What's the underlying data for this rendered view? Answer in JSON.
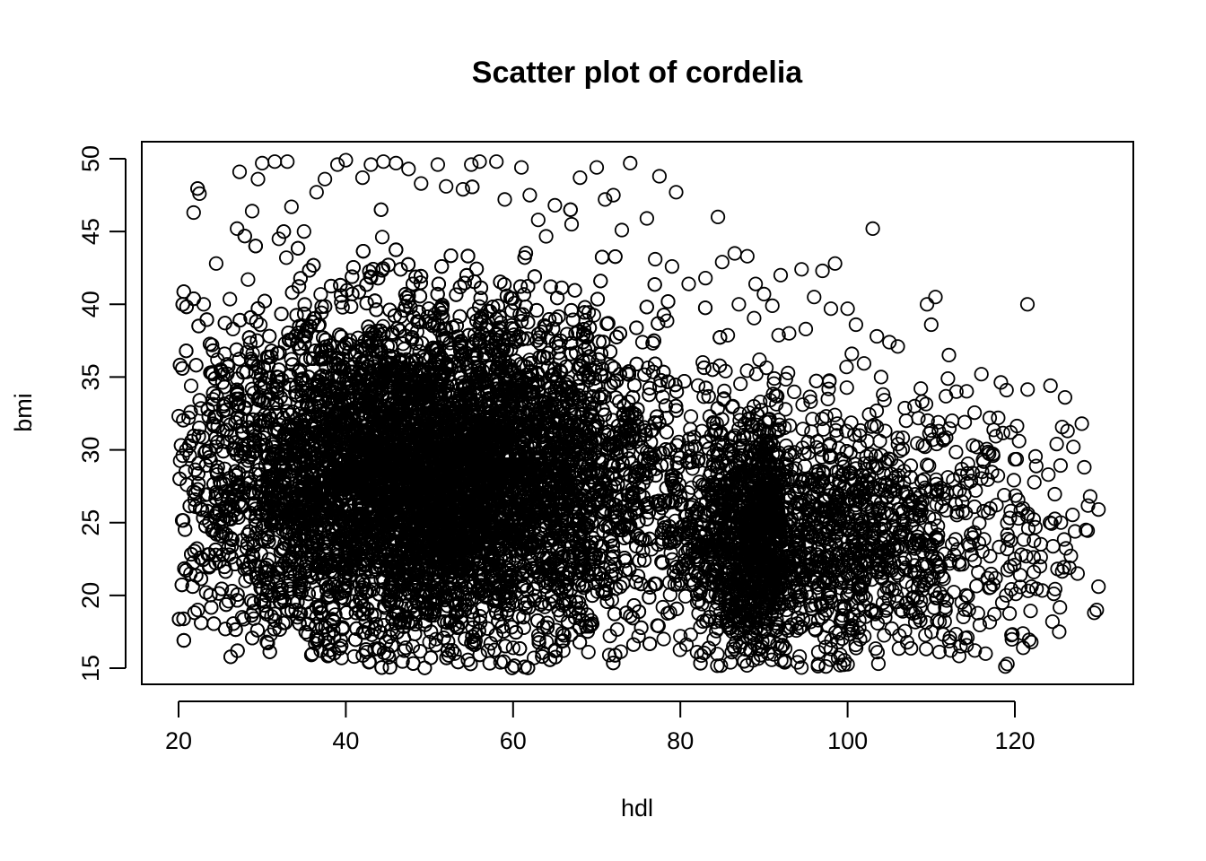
{
  "chart_data": {
    "type": "scatter",
    "title": "Scatter plot of cordelia",
    "xlabel": "hdl",
    "ylabel": "bmi",
    "xlim": [
      20,
      130
    ],
    "ylim": [
      15,
      50
    ],
    "x_ticks": [
      20,
      40,
      60,
      80,
      100,
      120
    ],
    "y_ticks": [
      15,
      20,
      25,
      30,
      35,
      40,
      45,
      50
    ],
    "x_tick_labels": [
      "20",
      "40",
      "60",
      "80",
      "100",
      "120"
    ],
    "y_tick_labels": [
      "15",
      "20",
      "25",
      "30",
      "35",
      "40",
      "45",
      "50"
    ],
    "marker": "open-circle",
    "grid": false,
    "legend": "none",
    "color": "#000000",
    "points": [
      [
        20.5,
        29.6
      ],
      [
        21.0,
        27.6
      ],
      [
        21.2,
        32.2
      ],
      [
        21.5,
        34.4
      ],
      [
        21.8,
        46.3
      ],
      [
        22.0,
        26.1
      ],
      [
        22.3,
        19.0
      ],
      [
        22.5,
        47.6
      ],
      [
        23.0,
        40.0
      ],
      [
        23.3,
        20.2
      ],
      [
        23.5,
        22.8
      ],
      [
        23.8,
        35.3
      ],
      [
        24.0,
        37.2
      ],
      [
        24.5,
        42.8
      ],
      [
        25.0,
        24.1
      ],
      [
        25.5,
        36.6
      ],
      [
        26.0,
        19.6
      ],
      [
        26.5,
        38.3
      ],
      [
        27.0,
        45.2
      ],
      [
        27.3,
        49.1
      ],
      [
        27.6,
        18.5
      ],
      [
        28.0,
        21.0
      ],
      [
        28.3,
        41.7
      ],
      [
        28.8,
        46.4
      ],
      [
        29.0,
        18.4
      ],
      [
        29.5,
        48.6
      ],
      [
        30.0,
        49.7
      ],
      [
        30.5,
        20.0
      ],
      [
        31.0,
        17.3
      ],
      [
        31.5,
        49.8
      ],
      [
        32.0,
        44.5
      ],
      [
        32.5,
        18.1
      ],
      [
        33.0,
        49.8
      ],
      [
        33.5,
        46.7
      ],
      [
        34.0,
        19.0
      ],
      [
        35.0,
        45.0
      ],
      [
        35.5,
        17.3
      ],
      [
        36.0,
        16.0
      ],
      [
        36.5,
        47.7
      ],
      [
        37.0,
        16.2
      ],
      [
        37.5,
        48.6
      ],
      [
        38.0,
        15.9
      ],
      [
        38.5,
        17.6
      ],
      [
        39.0,
        49.6
      ],
      [
        39.5,
        15.7
      ],
      [
        40.0,
        49.9
      ],
      [
        41.0,
        15.8
      ],
      [
        42.0,
        48.7
      ],
      [
        42.5,
        16.1
      ],
      [
        43.0,
        49.6
      ],
      [
        44.0,
        16.3
      ],
      [
        44.5,
        49.8
      ],
      [
        45.0,
        16.0
      ],
      [
        46.0,
        49.7
      ],
      [
        47.0,
        16.2
      ],
      [
        47.5,
        49.3
      ],
      [
        48.0,
        16.5
      ],
      [
        49.0,
        48.3
      ],
      [
        50.0,
        16.8
      ],
      [
        51.0,
        49.6
      ],
      [
        52.0,
        48.1
      ],
      [
        53.0,
        16.0
      ],
      [
        54.0,
        47.9
      ],
      [
        55.0,
        49.6
      ],
      [
        55.5,
        16.9
      ],
      [
        56.0,
        49.8
      ],
      [
        57.0,
        16.2
      ],
      [
        58.0,
        49.8
      ],
      [
        58.5,
        15.4
      ],
      [
        59.0,
        47.2
      ],
      [
        60.0,
        16.4
      ],
      [
        61.0,
        49.4
      ],
      [
        62.0,
        47.5
      ],
      [
        62.5,
        15.7
      ],
      [
        63.0,
        45.8
      ],
      [
        64.0,
        16.8
      ],
      [
        65.0,
        46.8
      ],
      [
        66.0,
        16.2
      ],
      [
        67.0,
        45.5
      ],
      [
        68.0,
        48.7
      ],
      [
        69.0,
        16.1
      ],
      [
        70.0,
        49.4
      ],
      [
        71.0,
        47.2
      ],
      [
        71.5,
        15.9
      ],
      [
        72.0,
        47.5
      ],
      [
        73.0,
        45.1
      ],
      [
        74.0,
        49.7
      ],
      [
        75.0,
        17.2
      ],
      [
        76.0,
        45.9
      ],
      [
        77.0,
        43.1
      ],
      [
        77.5,
        48.8
      ],
      [
        78.0,
        17.0
      ],
      [
        79.0,
        42.6
      ],
      [
        79.5,
        47.7
      ],
      [
        80.0,
        17.2
      ],
      [
        81.0,
        41.4
      ],
      [
        82.0,
        16.1
      ],
      [
        83.0,
        41.8
      ],
      [
        84.0,
        17.0
      ],
      [
        84.5,
        46.0
      ],
      [
        85.0,
        42.9
      ],
      [
        86.0,
        15.4
      ],
      [
        86.5,
        43.5
      ],
      [
        87.0,
        40.0
      ],
      [
        88.0,
        43.3
      ],
      [
        88.5,
        17.4
      ],
      [
        89.0,
        41.4
      ],
      [
        90.0,
        40.7
      ],
      [
        90.5,
        17.0
      ],
      [
        91.0,
        39.9
      ],
      [
        92.0,
        42.0
      ],
      [
        92.5,
        15.5
      ],
      [
        93.0,
        38.0
      ],
      [
        94.0,
        15.4
      ],
      [
        94.5,
        42.4
      ],
      [
        95.0,
        38.3
      ],
      [
        96.0,
        40.5
      ],
      [
        96.5,
        16.1
      ],
      [
        97.0,
        42.3
      ],
      [
        98.0,
        39.7
      ],
      [
        98.5,
        42.8
      ],
      [
        99.0,
        17.4
      ],
      [
        100.0,
        39.7
      ],
      [
        100.5,
        36.6
      ],
      [
        101.0,
        38.6
      ],
      [
        102.0,
        17.2
      ],
      [
        103.0,
        45.2
      ],
      [
        103.5,
        37.8
      ],
      [
        104.0,
        35.0
      ],
      [
        104.5,
        18.5
      ],
      [
        105.0,
        37.4
      ],
      [
        106.0,
        37.1
      ],
      [
        107.0,
        32.0
      ],
      [
        107.5,
        18.9
      ],
      [
        108.0,
        33.0
      ],
      [
        109.0,
        30.3
      ],
      [
        109.5,
        40.0
      ],
      [
        110.0,
        38.6
      ],
      [
        110.5,
        40.5
      ],
      [
        111.0,
        18.2
      ],
      [
        112.0,
        34.9
      ],
      [
        112.5,
        32.0
      ],
      [
        113.0,
        34.0
      ],
      [
        113.5,
        16.5
      ],
      [
        114.0,
        31.9
      ],
      [
        114.5,
        19.0
      ],
      [
        115.0,
        30.3
      ],
      [
        116.0,
        35.2
      ],
      [
        116.5,
        16.0
      ],
      [
        117.0,
        32.2
      ],
      [
        118.0,
        32.2
      ],
      [
        118.5,
        19.5
      ],
      [
        119.0,
        34.1
      ],
      [
        119.5,
        31.2
      ],
      [
        120.0,
        22.5
      ],
      [
        120.5,
        30.6
      ],
      [
        121.0,
        16.4
      ],
      [
        121.5,
        40.0
      ],
      [
        122.0,
        20.6
      ],
      [
        123.0,
        22.0
      ],
      [
        124.0,
        28.3
      ],
      [
        124.5,
        18.2
      ],
      [
        125.0,
        30.4
      ],
      [
        125.5,
        25.0
      ],
      [
        126.0,
        33.6
      ],
      [
        126.5,
        21.9
      ],
      [
        127.0,
        30.2
      ],
      [
        127.5,
        21.5
      ],
      [
        128.0,
        31.8
      ],
      [
        128.5,
        24.5
      ],
      [
        129.0,
        26.8
      ],
      [
        129.5,
        18.8
      ],
      [
        130.0,
        20.6
      ],
      [
        130.0,
        25.9
      ],
      [
        129.8,
        19.0
      ],
      [
        128.3,
        28.8
      ],
      [
        127.2,
        24.4
      ],
      [
        126.3,
        31.3
      ],
      [
        125.3,
        17.5
      ],
      [
        124.2,
        25.0
      ]
    ],
    "density": {
      "description": "dense cloud of overlapping circles",
      "center": [
        50,
        28
      ],
      "spread": [
        14,
        5.6
      ],
      "count": 12000,
      "tail": {
        "center": [
          92,
          24
        ],
        "spread": [
          14,
          4.2
        ],
        "count": 2200
      }
    }
  }
}
